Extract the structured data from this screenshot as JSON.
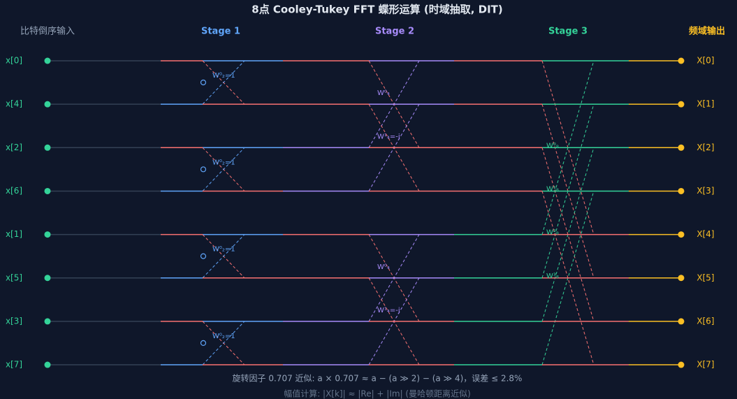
{
  "title": "8点 Cooley-Tukey FFT 蝶形运算 (时域抽取, DIT)",
  "headers": {
    "input": "比特倒序输入",
    "stages": [
      "Stage 1",
      "Stage 2",
      "Stage 3"
    ],
    "output": "频域输出"
  },
  "inputs": [
    "x[0]",
    "x[4]",
    "x[2]",
    "x[6]",
    "x[1]",
    "x[5]",
    "x[3]",
    "x[7]"
  ],
  "outputs": [
    "X[0]",
    "X[1]",
    "X[2]",
    "X[3]",
    "X[4]",
    "X[5]",
    "X[6]",
    "X[7]"
  ],
  "twiddles": {
    "stage1": [
      "W⁰₂=1",
      "W⁰₂=1",
      "W⁰₂=1",
      "W⁰₂=1"
    ],
    "stage2": [
      "W⁰₄",
      "W¹₄=-j",
      "W⁰₄",
      "W¹₄=-j"
    ],
    "stage3": [
      "W⁰₈",
      "W¹₈",
      "W²₈",
      "W³₈"
    ]
  },
  "footer": [
    "旋转因子 0.707 近似: a × 0.707 ≈ a − (a ≫ 2) − (a ≫ 4)，误差 ≤ 2.8%",
    "幅值计算: |X[k]| ≈ |Re| + |Im| (曼哈顿距离近似)"
  ]
}
